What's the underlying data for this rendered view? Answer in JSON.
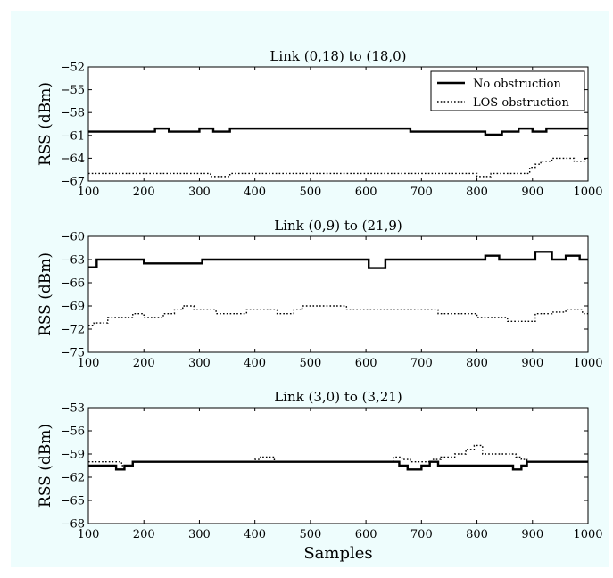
{
  "figure": {
    "xlabel": "Samples",
    "ylabel": "RSS (dBm)",
    "background": "#eefdfd"
  },
  "legend": {
    "placement": "top-right of first panel",
    "entries": [
      {
        "label": "No obstruction",
        "style": "solid"
      },
      {
        "label": "LOS obstruction",
        "style": "dotted"
      }
    ]
  },
  "chart_data": [
    {
      "type": "line",
      "title": "Link (0,18) to (18,0)",
      "xlabel": "",
      "ylabel": "RSS (dBm)",
      "xlim": [
        100,
        1000
      ],
      "ylim": [
        -67,
        -52
      ],
      "yticks": [
        -67,
        -64,
        -61,
        -58,
        -55,
        -52
      ],
      "xticks": [
        100,
        200,
        300,
        400,
        500,
        600,
        700,
        800,
        900,
        1000
      ],
      "grid": false,
      "series": [
        {
          "name": "No obstruction",
          "style": "solid",
          "x": [
            100,
            220,
            245,
            300,
            325,
            355,
            680,
            815,
            845,
            875,
            900,
            925,
            1000
          ],
          "y": [
            -60.5,
            -60.1,
            -60.5,
            -60.1,
            -60.5,
            -60.1,
            -60.5,
            -60.9,
            -60.5,
            -60.1,
            -60.5,
            -60.1,
            -60.1
          ]
        },
        {
          "name": "LOS obstruction",
          "style": "dotted",
          "x": [
            100,
            320,
            355,
            800,
            825,
            895,
            905,
            915,
            935,
            975,
            995,
            1000
          ],
          "y": [
            -66.0,
            -66.4,
            -66.0,
            -66.4,
            -66.0,
            -65.2,
            -64.8,
            -64.4,
            -64.0,
            -64.4,
            -64.0,
            -64.0
          ]
        }
      ]
    },
    {
      "type": "line",
      "title": "Link (0,9) to (21,9)",
      "xlabel": "",
      "ylabel": "RSS (dBm)",
      "xlim": [
        100,
        1000
      ],
      "ylim": [
        -75,
        -60
      ],
      "yticks": [
        -75,
        -72,
        -69,
        -66,
        -63,
        -60
      ],
      "xticks": [
        100,
        200,
        300,
        400,
        500,
        600,
        700,
        800,
        900,
        1000
      ],
      "grid": false,
      "series": [
        {
          "name": "No obstruction",
          "style": "solid",
          "x": [
            100,
            115,
            200,
            305,
            605,
            635,
            815,
            840,
            905,
            935,
            960,
            985,
            1000
          ],
          "y": [
            -64.0,
            -63.0,
            -63.5,
            -63.0,
            -64.1,
            -63.0,
            -62.5,
            -63.0,
            -62.0,
            -63.0,
            -62.5,
            -63.0,
            -63.0
          ]
        },
        {
          "name": "LOS obstruction",
          "style": "dotted",
          "x": [
            100,
            110,
            135,
            180,
            200,
            235,
            255,
            270,
            290,
            330,
            385,
            440,
            470,
            485,
            565,
            730,
            800,
            855,
            905,
            935,
            960,
            990,
            1000
          ],
          "y": [
            -71.5,
            -71.2,
            -70.5,
            -70.0,
            -70.5,
            -70.0,
            -69.5,
            -69.0,
            -69.5,
            -70.0,
            -69.5,
            -70.0,
            -69.5,
            -69.0,
            -69.5,
            -70.0,
            -70.5,
            -71.0,
            -70.0,
            -69.8,
            -69.5,
            -70.0,
            -70.0
          ]
        }
      ]
    },
    {
      "type": "line",
      "title": "Link (3,0) to (3,21)",
      "xlabel": "Samples",
      "ylabel": "RSS (dBm)",
      "xlim": [
        100,
        1000
      ],
      "ylim": [
        -68,
        -53
      ],
      "yticks": [
        -68,
        -65,
        -62,
        -59,
        -56,
        -53
      ],
      "xticks": [
        100,
        200,
        300,
        400,
        500,
        600,
        700,
        800,
        900,
        1000
      ],
      "grid": false,
      "series": [
        {
          "name": "No obstruction",
          "style": "solid",
          "x": [
            100,
            150,
            165,
            180,
            660,
            675,
            700,
            715,
            730,
            830,
            865,
            880,
            890,
            1000
          ],
          "y": [
            -60.5,
            -61.0,
            -60.5,
            -60.0,
            -60.5,
            -61.0,
            -60.5,
            -60.0,
            -60.5,
            -60.5,
            -61.0,
            -60.5,
            -60.0,
            -60.0
          ]
        },
        {
          "name": "LOS obstruction",
          "style": "dotted",
          "x": [
            100,
            160,
            180,
            400,
            410,
            435,
            650,
            665,
            680,
            720,
            735,
            760,
            780,
            795,
            810,
            870,
            880,
            890,
            1000
          ],
          "y": [
            -60.0,
            -60.5,
            -60.0,
            -59.7,
            -59.4,
            -60.0,
            -59.4,
            -59.7,
            -60.0,
            -59.7,
            -59.4,
            -59.0,
            -58.4,
            -57.9,
            -59.0,
            -59.4,
            -59.7,
            -60.0,
            -60.0
          ]
        }
      ]
    }
  ]
}
